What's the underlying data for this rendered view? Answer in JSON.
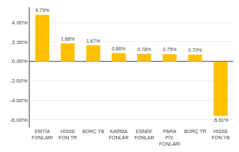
{
  "chart_data": {
    "type": "bar",
    "categories": [
      "EMTİA\nFONLARI",
      "HİSSE\nFON TR",
      "BORÇ YB",
      "KARMA\nFONLAR",
      "ESNEK\nFONLAR",
      "PARA\nPİY.\nFONLARI",
      "BORÇ TR",
      "HİSSE\nFON YB"
    ],
    "values": [
      4.79,
      1.86,
      1.67,
      0.86,
      0.78,
      0.75,
      0.7,
      -5.61
    ],
    "value_labels": [
      "4.79%",
      "1.86%",
      "1.67%",
      "0.86%",
      "0.78%",
      "0.75%",
      "0.70%",
      "-5.61%"
    ],
    "data_labels": true,
    "color": "#FFC000",
    "ylim": [
      -6.8,
      5.6
    ],
    "yticks": [
      {
        "value": -6.0,
        "label": "-6.00%"
      },
      {
        "value": -4.0,
        "label": "-4.00%"
      },
      {
        "value": -2.0,
        "label": "-2.00%"
      },
      {
        "value": 0.0,
        "label": "0.00%"
      },
      {
        "value": 2.0,
        "label": "2.00%"
      },
      {
        "value": 4.0,
        "label": "4.00%"
      }
    ],
    "grid": true
  }
}
